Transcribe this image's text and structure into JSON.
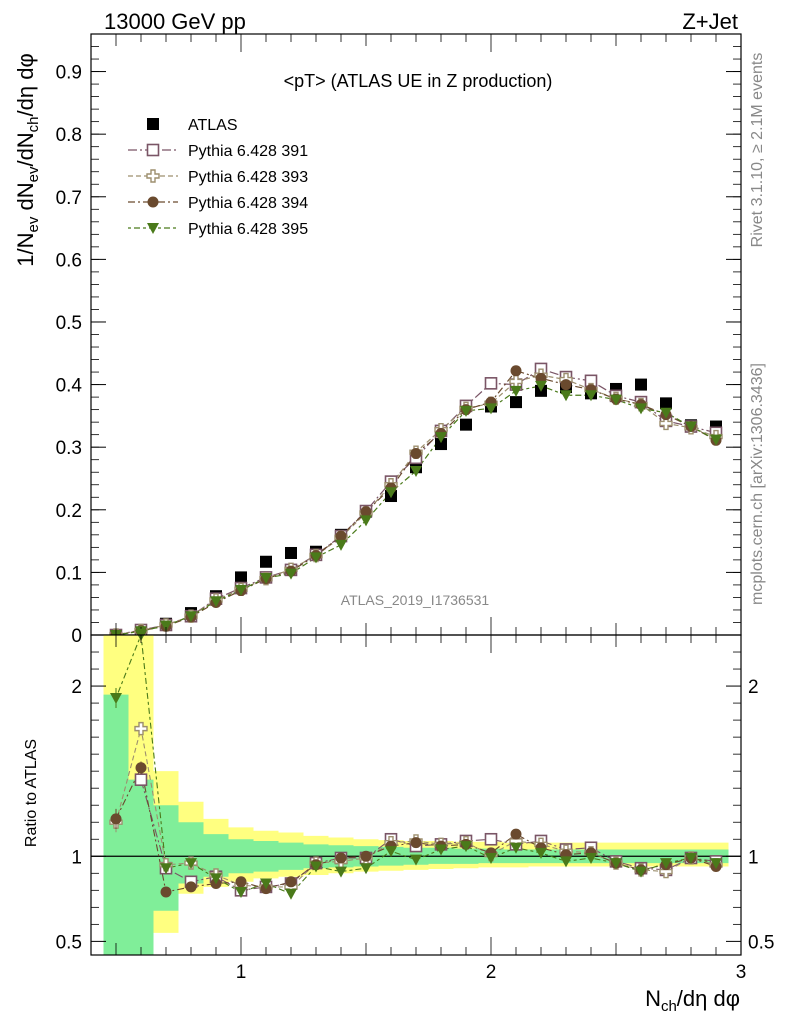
{
  "header": {
    "left": "13000 GeV pp",
    "right": "Z+Jet"
  },
  "side_labels": {
    "rivet": "Rivet 3.1.10, ≥ 2.1M events",
    "mcplots": "mcplots.cern.ch [arXiv:1306.3436]"
  },
  "analysis_id": "ATLAS_2019_I1736531",
  "colors": {
    "atlas": "#000000",
    "p391": "#7a5566",
    "p393": "#9d8f6e",
    "p394": "#6a4a2e",
    "p395": "#4a7a1a",
    "band_yellow": "#ffff80",
    "band_green": "#80ee99"
  },
  "chart_data": [
    {
      "type": "scatter",
      "title": "<pT> (ATLAS UE in Z production)",
      "ylabel": "1/N_ev dN_ev/dN_ch/dη dφ",
      "xlabel": "N_ch/dη dφ",
      "xlim": [
        0.4,
        3.0
      ],
      "ylim": [
        0,
        0.96
      ],
      "yticks": [
        0,
        0.1,
        0.2,
        0.3,
        0.4,
        0.5,
        0.6,
        0.7,
        0.8,
        0.9
      ],
      "ytick_labels": [
        "0",
        "0.1",
        "0.2",
        "0.3",
        "0.4",
        "0.5",
        "0.6",
        "0.7",
        "0.8",
        "0.9"
      ],
      "legend_position": "top-left",
      "x": [
        0.5,
        0.6,
        0.7,
        0.8,
        0.9,
        1.0,
        1.1,
        1.2,
        1.3,
        1.4,
        1.5,
        1.6,
        1.7,
        1.8,
        1.9,
        2.0,
        2.1,
        2.2,
        2.3,
        2.4,
        2.5,
        2.6,
        2.7,
        2.8,
        2.9
      ],
      "series": [
        {
          "name": "ATLAS",
          "key": "atlas",
          "marker": "square-filled",
          "values": [
            0.0,
            0.005,
            0.018,
            0.035,
            0.062,
            0.092,
            0.117,
            0.131,
            0.133,
            0.16,
            0.197,
            0.222,
            0.268,
            0.305,
            0.336,
            0.365,
            0.372,
            0.39,
            0.396,
            0.386,
            0.393,
            0.4,
            0.37,
            0.335,
            0.333
          ]
        },
        {
          "name": "Pythia 6.428 391",
          "key": "p391",
          "marker": "square-open",
          "values": [
            0.0,
            0.008,
            0.016,
            0.03,
            0.058,
            0.075,
            0.092,
            0.104,
            0.128,
            0.158,
            0.198,
            0.245,
            0.283,
            0.326,
            0.366,
            0.402,
            0.4,
            0.425,
            0.412,
            0.406,
            0.382,
            0.372,
            0.342,
            0.333,
            0.323
          ]
        },
        {
          "name": "Pythia 6.428 393",
          "key": "p393",
          "marker": "cross-open",
          "values": [
            0.0,
            0.007,
            0.016,
            0.03,
            0.056,
            0.073,
            0.09,
            0.105,
            0.127,
            0.156,
            0.195,
            0.24,
            0.292,
            0.328,
            0.362,
            0.37,
            0.405,
            0.415,
            0.408,
            0.392,
            0.378,
            0.368,
            0.338,
            0.331,
            0.317
          ]
        },
        {
          "name": "Pythia 6.428 394",
          "key": "p394",
          "marker": "circle-filled",
          "values": [
            0.0,
            0.007,
            0.014,
            0.029,
            0.052,
            0.071,
            0.09,
            0.102,
            0.127,
            0.158,
            0.197,
            0.235,
            0.29,
            0.322,
            0.36,
            0.372,
            0.422,
            0.41,
            0.4,
            0.392,
            0.377,
            0.368,
            0.352,
            0.333,
            0.311
          ]
        },
        {
          "name": "Pythia 6.428 395",
          "key": "p395",
          "marker": "triangle-down-filled",
          "values": [
            0.0,
            0.006,
            0.015,
            0.03,
            0.054,
            0.072,
            0.091,
            0.098,
            0.124,
            0.144,
            0.183,
            0.228,
            0.262,
            0.316,
            0.358,
            0.362,
            0.39,
            0.398,
            0.383,
            0.383,
            0.376,
            0.362,
            0.355,
            0.333,
            0.312
          ]
        }
      ]
    },
    {
      "type": "scatter",
      "ylabel": "Ratio to ATLAS",
      "xlabel": "N_ch/dη dφ",
      "xlim": [
        0.4,
        3.0
      ],
      "ylim": [
        0.42,
        2.3
      ],
      "yticks": [
        0.5,
        1,
        2
      ],
      "ytick_labels": [
        "0.5",
        "1",
        "2"
      ],
      "xticks": [
        1,
        2,
        3
      ],
      "xtick_labels": [
        "1",
        "2",
        "3"
      ],
      "reference_line": 1,
      "bands": {
        "x_edges": [
          0.45,
          0.55,
          0.65,
          0.75,
          0.85,
          0.95,
          1.05,
          1.15,
          1.25,
          1.35,
          1.45,
          1.55,
          1.65,
          1.75,
          1.85,
          1.95,
          2.05,
          2.15,
          2.25,
          2.35,
          2.45,
          2.55,
          2.65,
          2.75,
          2.85,
          2.95
        ],
        "yellow_low": [
          0.42,
          0.42,
          0.55,
          0.78,
          0.82,
          0.85,
          0.87,
          0.88,
          0.89,
          0.9,
          0.91,
          0.915,
          0.92,
          0.925,
          0.93,
          0.935,
          0.935,
          0.94,
          0.94,
          0.94,
          0.94,
          0.94,
          0.94,
          0.94,
          0.94
        ],
        "yellow_high": [
          2.3,
          2.3,
          1.5,
          1.32,
          1.22,
          1.17,
          1.15,
          1.14,
          1.12,
          1.11,
          1.1,
          1.095,
          1.09,
          1.09,
          1.085,
          1.085,
          1.08,
          1.08,
          1.08,
          1.08,
          1.08,
          1.08,
          1.08,
          1.08,
          1.08
        ],
        "green_low": [
          0.42,
          0.42,
          0.68,
          0.84,
          0.88,
          0.9,
          0.91,
          0.92,
          0.93,
          0.935,
          0.94,
          0.945,
          0.95,
          0.955,
          0.955,
          0.96,
          0.96,
          0.96,
          0.96,
          0.96,
          0.96,
          0.96,
          0.96,
          0.96,
          0.96
        ],
        "green_high": [
          1.95,
          1.45,
          1.3,
          1.2,
          1.13,
          1.1,
          1.09,
          1.08,
          1.07,
          1.065,
          1.06,
          1.055,
          1.05,
          1.05,
          1.045,
          1.045,
          1.04,
          1.04,
          1.04,
          1.04,
          1.04,
          1.04,
          1.04,
          1.04,
          1.04
        ]
      },
      "series": [
        {
          "name": "Pythia 6.428 391",
          "key": "p391",
          "marker": "square-open",
          "values": [
            null,
            1.45,
            0.93,
            0.85,
            0.88,
            0.8,
            0.82,
            0.84,
            0.96,
            0.99,
            0.99,
            1.1,
            1.06,
            1.07,
            1.09,
            1.1,
            1.07,
            1.09,
            1.04,
            1.05,
            0.97,
            0.93,
            0.92,
            0.99,
            0.97
          ]
        },
        {
          "name": "Pythia 6.428 393",
          "key": "p393",
          "marker": "cross-open",
          "values": [
            1.2,
            1.75,
            0.95,
            0.96,
            0.89,
            0.83,
            0.82,
            0.82,
            0.96,
            0.97,
            0.99,
            1.08,
            1.09,
            1.07,
            1.08,
            1.01,
            1.09,
            1.07,
            1.03,
            1.02,
            0.96,
            0.92,
            0.91,
            0.99,
            0.95
          ]
        },
        {
          "name": "Pythia 6.428 394",
          "key": "p394",
          "marker": "circle-filled",
          "values": [
            1.22,
            1.52,
            0.79,
            0.82,
            0.84,
            0.85,
            0.81,
            0.85,
            0.95,
            0.99,
            1.0,
            1.06,
            1.08,
            1.06,
            1.07,
            1.02,
            1.13,
            1.05,
            1.01,
            1.02,
            0.96,
            0.92,
            0.95,
            0.99,
            0.94
          ]
        },
        {
          "name": "Pythia 6.428 395",
          "key": "p395",
          "marker": "triangle-down-filled",
          "values": [
            1.93,
            2.3,
            0.93,
            0.96,
            0.87,
            0.79,
            0.84,
            0.78,
            0.94,
            0.91,
            0.93,
            1.03,
            0.98,
            1.04,
            1.06,
            0.99,
            1.05,
            1.02,
            0.97,
            0.99,
            0.96,
            0.91,
            0.96,
            0.99,
            0.96
          ]
        }
      ]
    }
  ]
}
